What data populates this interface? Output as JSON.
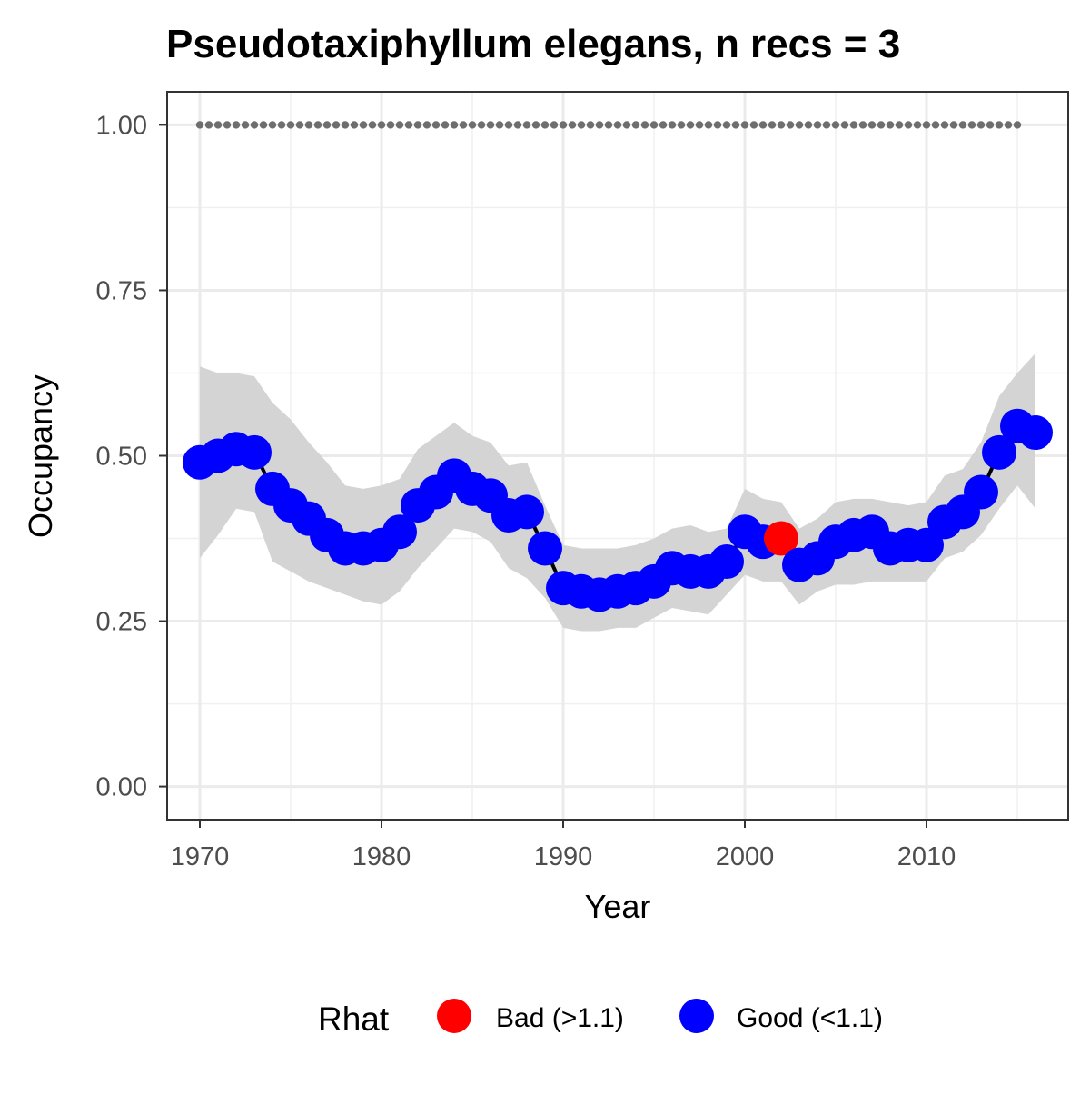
{
  "chart_data": {
    "type": "line",
    "title": "Pseudotaxiphyllum elegans, n recs = 3",
    "xlabel": "Year",
    "ylabel": "Occupancy",
    "xlim": [
      1968.2,
      2017.8
    ],
    "ylim": [
      -0.05,
      1.05
    ],
    "x_ticks": [
      1970,
      1980,
      1990,
      2000,
      2010
    ],
    "x_tick_labels": [
      "1970",
      "1980",
      "1990",
      "2000",
      "2010"
    ],
    "y_ticks": [
      0,
      0.25,
      0.5,
      0.75,
      1
    ],
    "y_tick_labels": [
      "0.00",
      "0.25",
      "0.50",
      "0.75",
      "1.00"
    ],
    "grid": true,
    "legend_position": "bottom",
    "legend": {
      "title": "Rhat",
      "items": [
        {
          "label": "Bad (>1.1)",
          "color": "#ff0000"
        },
        {
          "label": "Good (<1.1)",
          "color": "#0000ff"
        }
      ]
    },
    "colors": {
      "good": "#0000ff",
      "bad": "#ff0000",
      "ribbon": "#d4d4d4",
      "line": "#000000",
      "reference_dots": "#6e6e6e"
    },
    "series": [
      {
        "x": [
          1970,
          1971,
          1972,
          1973,
          1974,
          1975,
          1976,
          1977,
          1978,
          1979,
          1980,
          1981,
          1982,
          1983,
          1984,
          1985,
          1986,
          1987,
          1988,
          1989,
          1990,
          1991,
          1992,
          1993,
          1994,
          1995,
          1996,
          1997,
          1998,
          1999,
          2000,
          2001,
          2002,
          2003,
          2004,
          2005,
          2006,
          2007,
          2008,
          2009,
          2010,
          2011,
          2012,
          2013,
          2014,
          2015,
          2016
        ],
        "values": [
          0.49,
          0.5,
          0.51,
          0.505,
          0.45,
          0.425,
          0.405,
          0.38,
          0.36,
          0.36,
          0.365,
          0.385,
          0.425,
          0.445,
          0.47,
          0.45,
          0.44,
          0.41,
          0.415,
          0.36,
          0.3,
          0.295,
          0.29,
          0.295,
          0.3,
          0.31,
          0.33,
          0.325,
          0.325,
          0.34,
          0.385,
          0.37,
          0.375,
          0.335,
          0.345,
          0.37,
          0.38,
          0.385,
          0.36,
          0.365,
          0.365,
          0.4,
          0.415,
          0.445,
          0.505,
          0.545,
          0.535
        ],
        "rhat": [
          "Good",
          "Good",
          "Good",
          "Good",
          "Good",
          "Good",
          "Good",
          "Good",
          "Good",
          "Good",
          "Good",
          "Good",
          "Good",
          "Good",
          "Good",
          "Good",
          "Good",
          "Good",
          "Good",
          "Good",
          "Good",
          "Good",
          "Good",
          "Good",
          "Good",
          "Good",
          "Good",
          "Good",
          "Good",
          "Good",
          "Good",
          "Good",
          "Bad",
          "Good",
          "Good",
          "Good",
          "Good",
          "Good",
          "Good",
          "Good",
          "Good",
          "Good",
          "Good",
          "Good",
          "Good",
          "Good",
          "Good"
        ],
        "lower": [
          0.345,
          0.38,
          0.42,
          0.415,
          0.34,
          0.325,
          0.31,
          0.3,
          0.29,
          0.28,
          0.275,
          0.295,
          0.33,
          0.36,
          0.39,
          0.385,
          0.37,
          0.33,
          0.315,
          0.285,
          0.24,
          0.235,
          0.235,
          0.24,
          0.24,
          0.255,
          0.27,
          0.265,
          0.26,
          0.29,
          0.32,
          0.31,
          0.31,
          0.275,
          0.295,
          0.305,
          0.305,
          0.31,
          0.31,
          0.31,
          0.31,
          0.345,
          0.355,
          0.38,
          0.42,
          0.455,
          0.42
        ],
        "upper": [
          0.635,
          0.625,
          0.625,
          0.62,
          0.58,
          0.555,
          0.52,
          0.49,
          0.455,
          0.45,
          0.455,
          0.465,
          0.51,
          0.53,
          0.55,
          0.53,
          0.52,
          0.485,
          0.49,
          0.425,
          0.365,
          0.36,
          0.36,
          0.36,
          0.365,
          0.375,
          0.39,
          0.395,
          0.385,
          0.39,
          0.45,
          0.435,
          0.43,
          0.39,
          0.405,
          0.43,
          0.435,
          0.435,
          0.43,
          0.425,
          0.43,
          0.47,
          0.48,
          0.52,
          0.59,
          0.625,
          0.655
        ]
      }
    ],
    "reference_dots": {
      "value": 1.0,
      "x_start": 1970,
      "x_end": 2015,
      "step": 0.5
    }
  }
}
